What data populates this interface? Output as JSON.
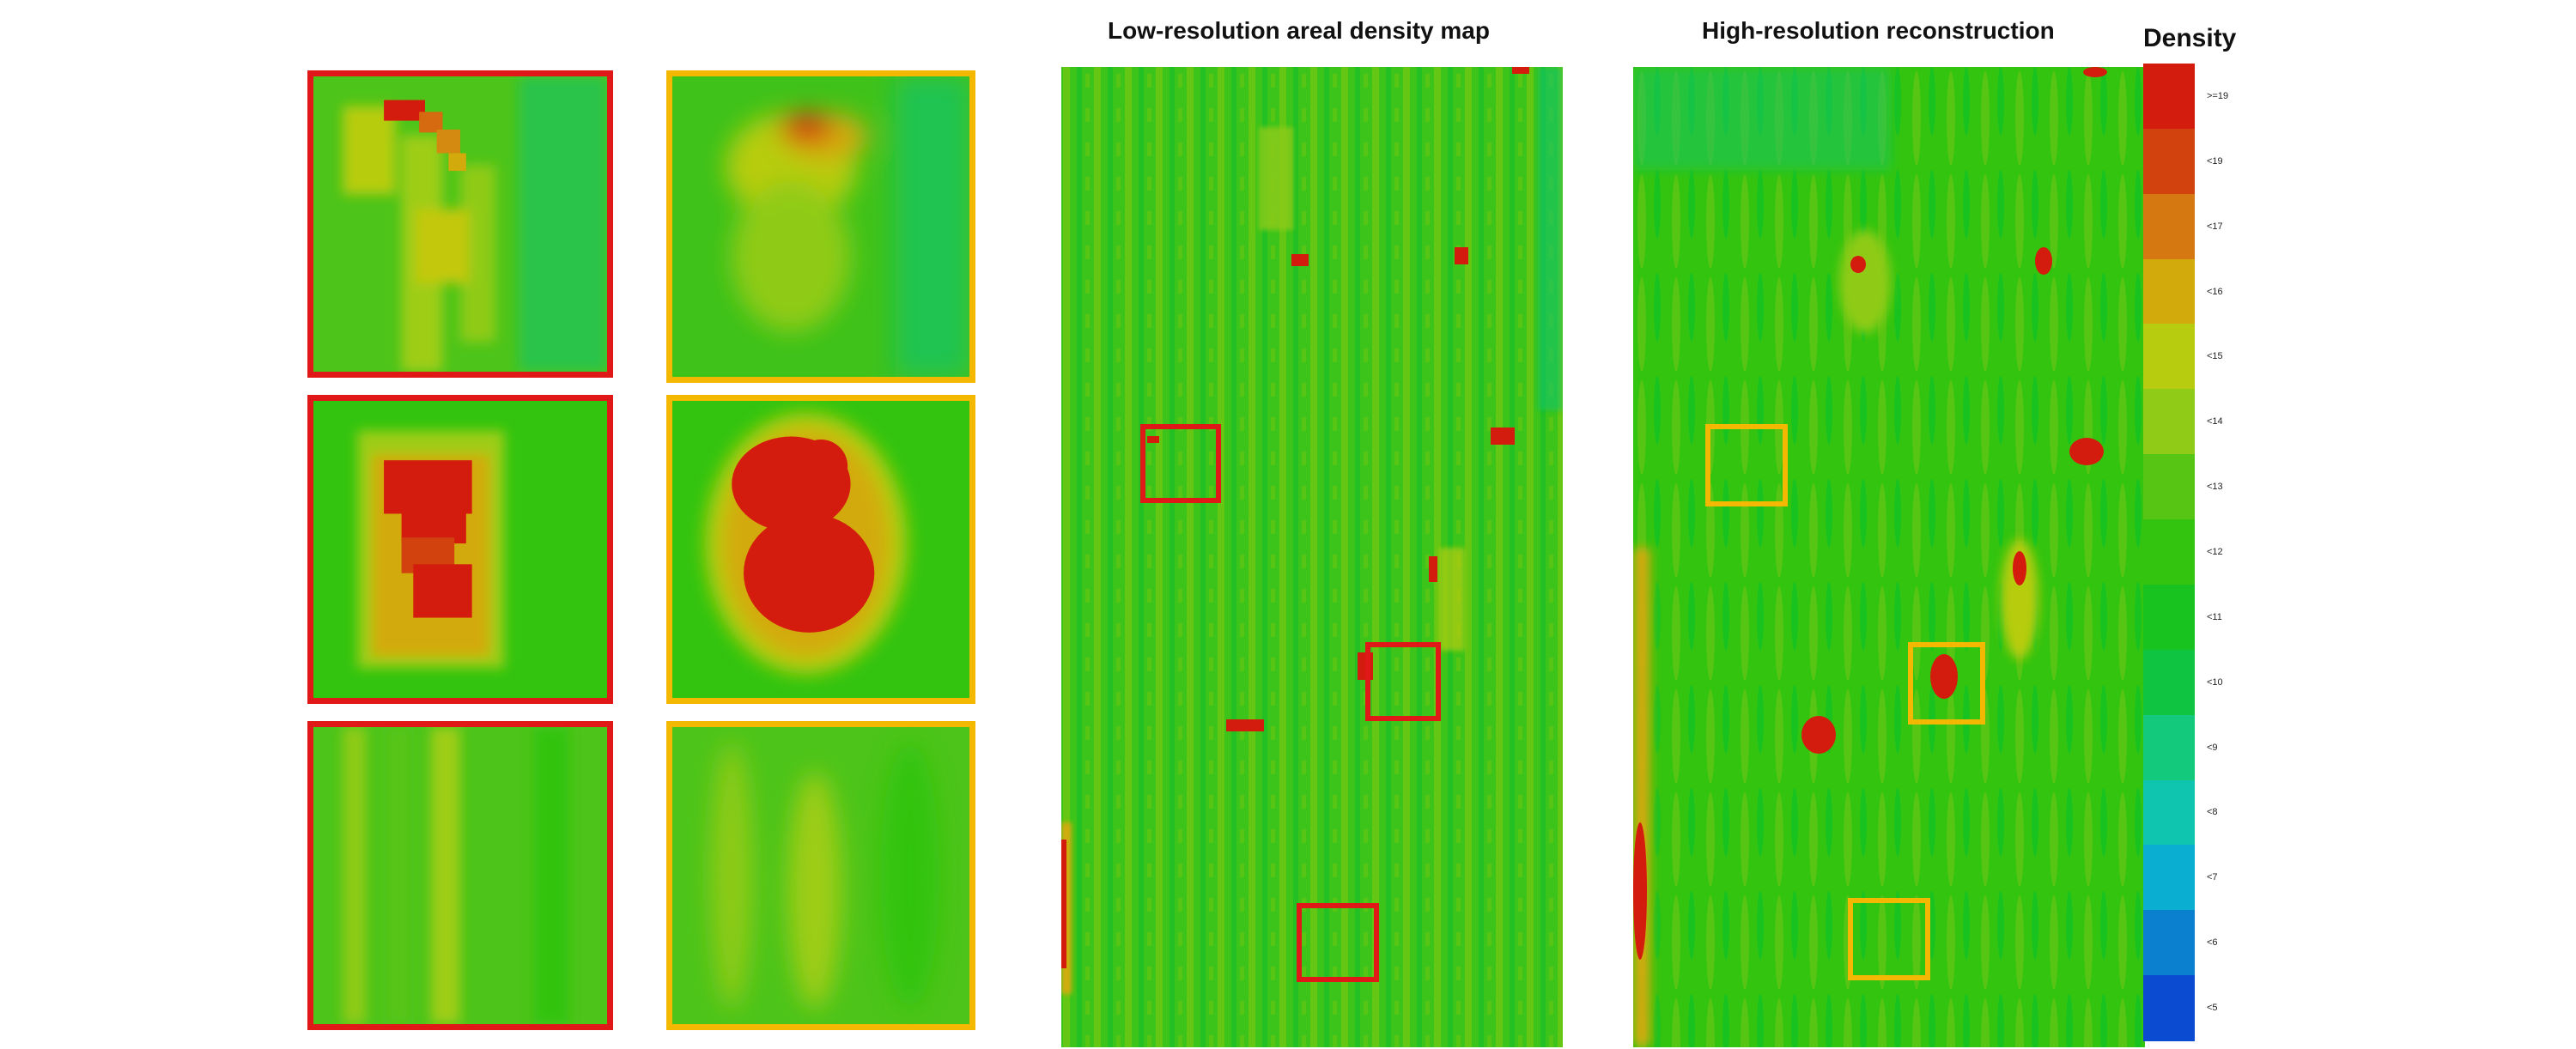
{
  "titles": {
    "low": "Low-resolution areal density map",
    "high": "High-resolution reconstruction"
  },
  "legend": {
    "title": "Density",
    "labels": [
      ">=19",
      "<19",
      "<17",
      "<16",
      "<15",
      "<14",
      "<13",
      "<12",
      "<11",
      "<10",
      "<9",
      "<8",
      "<7",
      "<6",
      "<5"
    ],
    "colors": [
      "#d41c0e",
      "#d1420e",
      "#d67811",
      "#d3aa0c",
      "#b7cc0e",
      "#8fcb17",
      "#56c514",
      "#33c40f",
      "#19c31f",
      "#0fc441",
      "#12c97c",
      "#10c5b0",
      "#0aaed1",
      "#0b80cf",
      "#0a4bd1"
    ]
  },
  "colors": {
    "red_marker": "#e01818",
    "orange_marker": "#f5b800",
    "field_green": "#33c40f",
    "hot_red": "#d41c0e"
  }
}
